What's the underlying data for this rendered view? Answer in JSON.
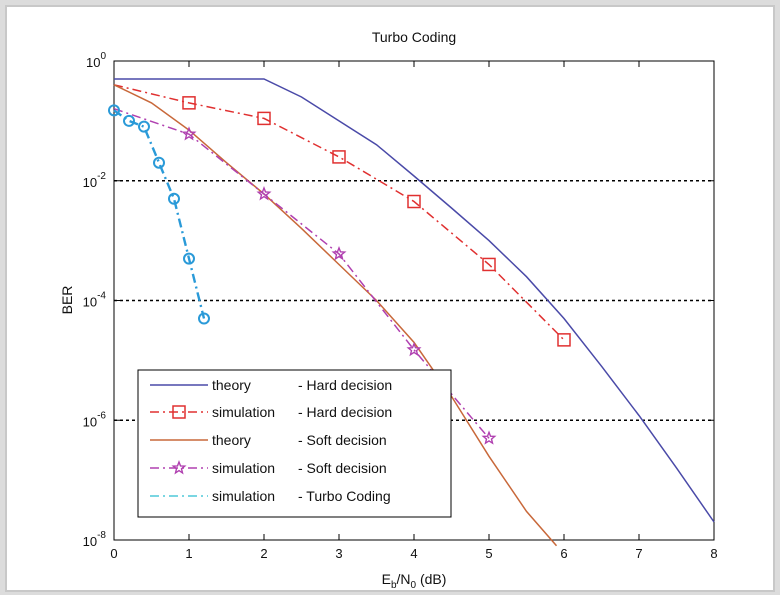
{
  "window": {
    "background": "#dcdcdc",
    "panel_color": "#ffffff",
    "frame_color": "#c8c8c8"
  },
  "chart_data": {
    "type": "line",
    "title": "Turbo Coding",
    "xlabel": {
      "main": "E",
      "sub1": "b",
      "mid": "/N",
      "sub2": "0",
      "tail": " (dB)"
    },
    "ylabel": "BER",
    "xlim": [
      0,
      8
    ],
    "ylim": [
      1e-08,
      1
    ],
    "yscale": "log",
    "x_ticks": [
      "0",
      "1",
      "2",
      "3",
      "4",
      "5",
      "6",
      "7",
      "8"
    ],
    "y_ticks": [
      {
        "base": "10",
        "exp": "0",
        "value": 1
      },
      {
        "base": "10",
        "exp": "-2",
        "value": 0.01
      },
      {
        "base": "10",
        "exp": "-4",
        "value": 0.0001
      },
      {
        "base": "10",
        "exp": "-6",
        "value": 1e-06
      },
      {
        "base": "10",
        "exp": "-8",
        "value": 1e-08
      }
    ],
    "grid": "dotted horizontal at 10^-2, 10^-4, 10^-6",
    "legend_position": "bottom-left",
    "series": [
      {
        "name": "theory      - Hard decision",
        "color": "#4a4aa8",
        "style": "solid",
        "marker": "none",
        "x": [
          0,
          0.5,
          1,
          1.5,
          2,
          2.5,
          3,
          3.5,
          4,
          4.5,
          5,
          5.5,
          6,
          6.5,
          7,
          7.5,
          8
        ],
        "y": [
          0.5,
          0.5,
          0.5,
          0.5,
          0.5,
          0.25,
          0.1,
          0.04,
          0.012,
          0.0035,
          0.001,
          0.00025,
          5e-05,
          8e-06,
          1.2e-06,
          1.6e-07,
          2e-08
        ]
      },
      {
        "name": "simulation  - Hard decision",
        "color": "#e03030",
        "style": "dashdot",
        "marker": "square",
        "x": [
          0,
          1,
          2,
          3,
          4,
          5,
          6
        ],
        "y": [
          0.4,
          0.2,
          0.11,
          0.025,
          0.0045,
          0.0004,
          2.2e-05
        ]
      },
      {
        "name": "theory      - Soft decision",
        "color": "#c8683a",
        "style": "solid",
        "marker": "none",
        "x": [
          0,
          0.5,
          1,
          1.5,
          2,
          2.5,
          3,
          3.5,
          4,
          4.5,
          5,
          5.5,
          5.9
        ],
        "y": [
          0.4,
          0.2,
          0.07,
          0.02,
          0.006,
          0.0016,
          0.0004,
          0.0001,
          2e-05,
          2.5e-06,
          2.5e-07,
          3e-08,
          8e-09
        ]
      },
      {
        "name": "simulation  - Soft decision",
        "color": "#b040b0",
        "style": "dashdot",
        "marker": "star",
        "x": [
          0,
          1,
          2,
          3,
          4,
          5
        ],
        "y": [
          0.16,
          0.06,
          0.006,
          0.0006,
          1.5e-05,
          5e-07
        ]
      },
      {
        "name": "simulation  - Turbo Coding",
        "color": "#2a9ad8",
        "style": "dashdot",
        "marker": "circle",
        "legend_color": "#4fc8d8",
        "x": [
          0,
          0.2,
          0.4,
          0.6,
          0.8,
          1.0,
          1.2
        ],
        "y": [
          0.15,
          0.1,
          0.08,
          0.02,
          0.005,
          0.0005,
          5e-05
        ]
      }
    ],
    "legend": [
      {
        "theory_or_sim": "theory",
        "label": "- Hard decision"
      },
      {
        "theory_or_sim": "simulation",
        "label": "- Hard decision"
      },
      {
        "theory_or_sim": "theory",
        "label": "- Soft decision"
      },
      {
        "theory_or_sim": "simulation",
        "label": "- Soft decision"
      },
      {
        "theory_or_sim": "simulation",
        "label": "- Turbo Coding"
      }
    ]
  }
}
